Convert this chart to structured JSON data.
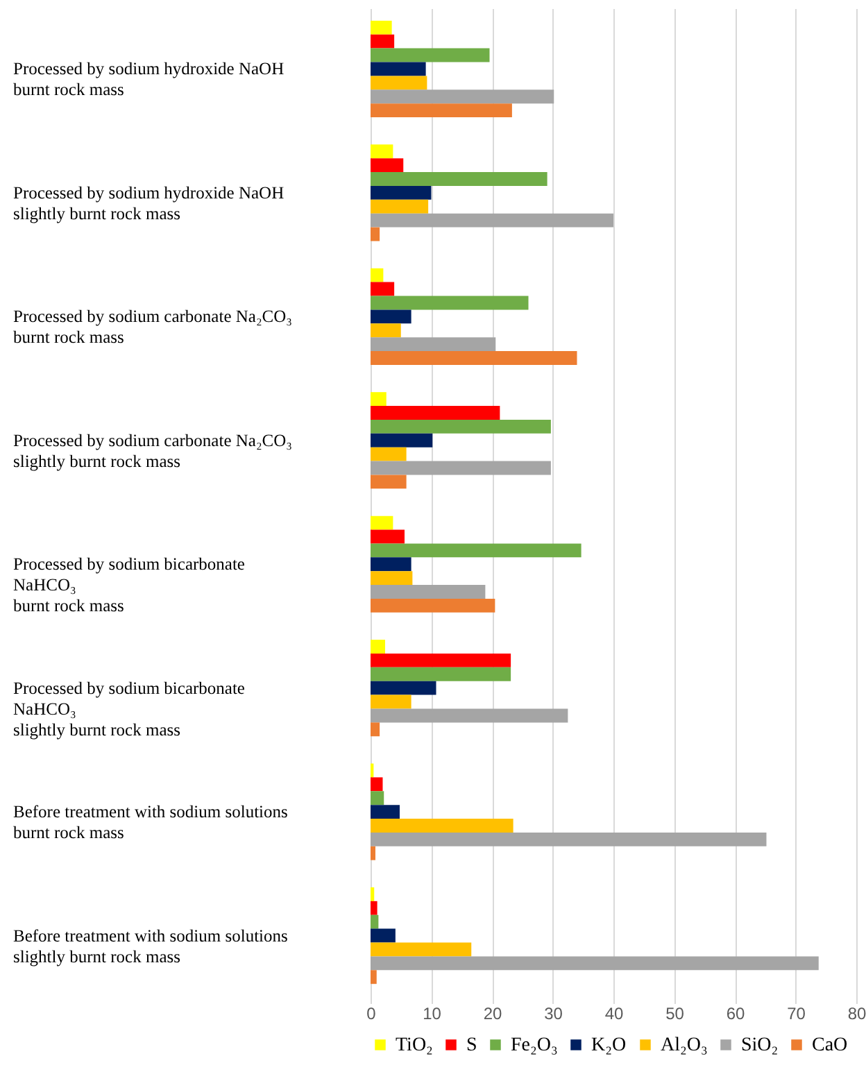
{
  "chart_data": {
    "type": "bar",
    "orientation": "horizontal",
    "categories": [
      "Processed by sodium hydroxide NaOH\nburnt rock mass",
      "Processed by sodium hydroxide NaOH\nslightly burnt rock mass",
      "Processed by sodium carbonate Na₂CO₃\nburnt rock mass",
      "Processed by sodium carbonate Na₂CO₃\nslightly burnt rock mass",
      "Processed by sodium bicarbonate\nNaHCO₃\nburnt rock mass",
      "Processed by sodium bicarbonate\nNaHCO₃\nslightly burnt rock mass",
      "Before treatment with sodium solutions\nburnt rock mass",
      "Before treatment with sodium solutions\nslightly burnt rock mass"
    ],
    "series": [
      {
        "name": "TiO₂",
        "color": "#ffff00",
        "values": [
          3.5,
          3.7,
          2.1,
          2.6,
          3.7,
          2.4,
          0.5,
          0.6
        ]
      },
      {
        "name": "S",
        "color": "#ff0000",
        "values": [
          3.9,
          5.4,
          3.9,
          21.3,
          5.6,
          23.1,
          2.0,
          1.1
        ]
      },
      {
        "name": "Fe₂O₃",
        "color": "#70ad47",
        "values": [
          19.6,
          29.1,
          26.0,
          29.7,
          34.7,
          23.1,
          2.2,
          1.3
        ]
      },
      {
        "name": "K₂O",
        "color": "#002060",
        "values": [
          9.1,
          10.0,
          6.7,
          10.2,
          6.7,
          10.8,
          4.8,
          4.1
        ]
      },
      {
        "name": "Al₂O₃",
        "color": "#ffc000",
        "values": [
          9.3,
          9.5,
          5.0,
          5.9,
          6.9,
          6.7,
          23.5,
          16.6
        ]
      },
      {
        "name": "SiO₂",
        "color": "#a5a5a5",
        "values": [
          30.2,
          40.0,
          20.6,
          29.7,
          18.9,
          32.5,
          65.2,
          73.8
        ]
      },
      {
        "name": "CaO",
        "color": "#ed7d31",
        "values": [
          23.3,
          1.5,
          34.0,
          5.9,
          20.5,
          1.5,
          0.8,
          1.0
        ]
      }
    ],
    "xlim": [
      0,
      80
    ],
    "xticks": [
      0,
      10,
      20,
      30,
      40,
      50,
      60,
      70,
      80
    ],
    "grid": "x",
    "legend": "bottom"
  }
}
